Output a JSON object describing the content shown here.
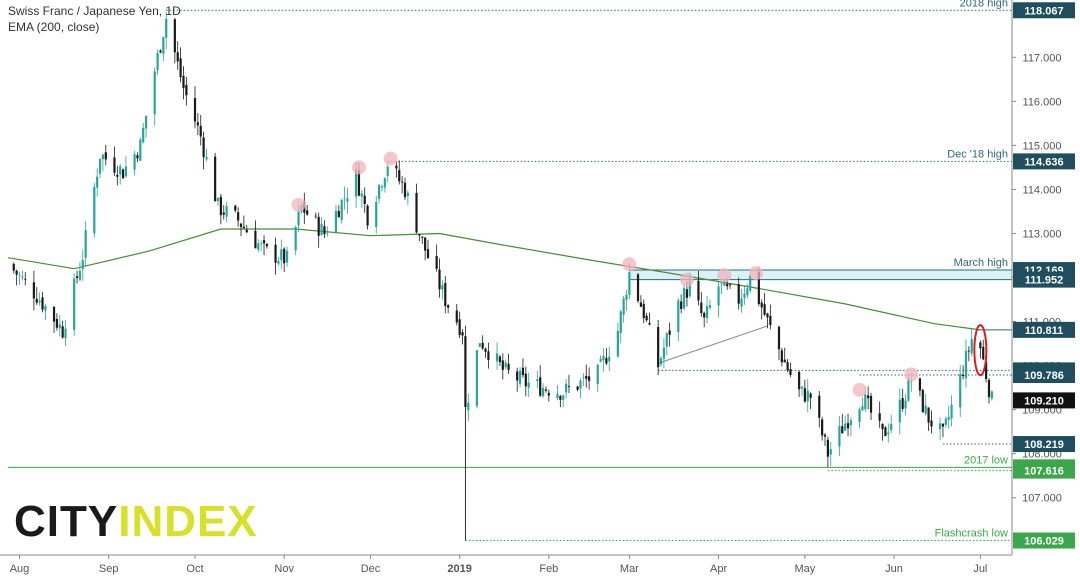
{
  "header": {
    "title": "Swiss Franc / Japanese Yen, 1D",
    "indicator": "EMA (200, close)"
  },
  "logo": {
    "part1": "CITY",
    "part2": "INDEX"
  },
  "colors": {
    "up": "#26a69a",
    "down": "#1a1a1a",
    "ema": "#4c8a3a",
    "guide": "#2e6b78",
    "green_guide": "#3aa84a",
    "marker": "#f2b4bc",
    "highlight_ring": "#d32020",
    "zone": "#c8ecf2",
    "label_bg": "#1f4e5f",
    "label_green": "#3aa84a",
    "label_current": "#111111"
  },
  "chart_data": {
    "type": "candlestick",
    "symbol": "CHF/JPY",
    "timeframe": "1D",
    "x_labels": [
      "Aug",
      "Sep",
      "Oct",
      "Nov",
      "Dec",
      "2019",
      "Feb",
      "Mar",
      "Apr",
      "May",
      "Jun",
      "Jul"
    ],
    "y_ticks": [
      107.0,
      108.0,
      109.0,
      110.0,
      111.0,
      112.0,
      113.0,
      114.0,
      115.0,
      116.0,
      117.0
    ],
    "ylim": [
      105.7,
      118.3
    ],
    "price_path": [
      [
        "2018-07-28",
        112.3
      ],
      [
        "2018-08-07",
        111.6
      ],
      [
        "2018-08-16",
        110.8
      ],
      [
        "2018-08-23",
        112.5
      ],
      [
        "2018-08-29",
        114.8
      ],
      [
        "2018-09-06",
        114.4
      ],
      [
        "2018-09-12",
        115.0
      ],
      [
        "2018-09-17",
        116.7
      ],
      [
        "2018-09-21",
        117.9
      ],
      [
        "2018-09-27",
        116.3
      ],
      [
        "2018-10-03",
        115.2
      ],
      [
        "2018-10-09",
        113.6
      ],
      [
        "2018-10-16",
        113.3
      ],
      [
        "2018-10-25",
        112.6
      ],
      [
        "2018-11-02",
        112.4
      ],
      [
        "2018-11-07",
        113.6
      ],
      [
        "2018-11-15",
        113.0
      ],
      [
        "2018-11-26",
        114.3
      ],
      [
        "2018-11-30",
        113.4
      ],
      [
        "2018-12-07",
        114.6
      ],
      [
        "2018-12-13",
        114.0
      ],
      [
        "2018-12-19",
        112.8
      ],
      [
        "2018-12-27",
        111.5
      ],
      [
        "2019-01-02",
        110.8
      ],
      [
        "2019-01-03",
        109.0
      ],
      [
        "2019-01-08",
        110.6
      ],
      [
        "2019-01-16",
        109.9
      ],
      [
        "2019-01-24",
        109.6
      ],
      [
        "2019-02-06",
        109.4
      ],
      [
        "2019-02-18",
        109.8
      ],
      [
        "2019-02-25",
        110.8
      ],
      [
        "2019-03-01",
        112.1
      ],
      [
        "2019-03-06",
        111.2
      ],
      [
        "2019-03-11",
        110.0
      ],
      [
        "2019-03-18",
        111.4
      ],
      [
        "2019-03-22",
        111.8
      ],
      [
        "2019-03-27",
        111.0
      ],
      [
        "2019-04-01",
        111.8
      ],
      [
        "2019-04-08",
        111.5
      ],
      [
        "2019-04-12",
        112.0
      ],
      [
        "2019-04-18",
        111.0
      ],
      [
        "2019-04-23",
        110.2
      ],
      [
        "2019-04-29",
        109.4
      ],
      [
        "2019-05-03",
        109.3
      ],
      [
        "2019-05-09",
        108.0
      ],
      [
        "2019-05-15",
        108.7
      ],
      [
        "2019-05-21",
        109.3
      ],
      [
        "2019-05-28",
        108.4
      ],
      [
        "2019-06-04",
        109.2
      ],
      [
        "2019-06-07",
        109.7
      ],
      [
        "2019-06-13",
        108.8
      ],
      [
        "2019-06-18",
        108.4
      ],
      [
        "2019-06-24",
        109.7
      ],
      [
        "2019-06-28",
        110.6
      ],
      [
        "2019-07-01",
        110.4
      ],
      [
        "2019-07-05",
        109.2
      ]
    ],
    "ema_path": [
      [
        "2018-07-28",
        112.45
      ],
      [
        "2018-08-20",
        112.2
      ],
      [
        "2018-09-15",
        112.6
      ],
      [
        "2018-10-10",
        113.1
      ],
      [
        "2018-11-05",
        113.1
      ],
      [
        "2018-12-01",
        112.95
      ],
      [
        "2018-12-25",
        113.0
      ],
      [
        "2019-01-15",
        112.75
      ],
      [
        "2019-02-15",
        112.4
      ],
      [
        "2019-03-15",
        112.1
      ],
      [
        "2019-04-15",
        111.75
      ],
      [
        "2019-05-15",
        111.4
      ],
      [
        "2019-06-15",
        110.95
      ],
      [
        "2019-07-01",
        110.81
      ]
    ],
    "levels": [
      {
        "name": "2018 high",
        "value": 118.067,
        "label": "118.067",
        "start": "2018-09-21",
        "style": "dotted",
        "tag": "guide"
      },
      {
        "name": "Dec '18 high",
        "value": 114.636,
        "label": "114.636",
        "start": "2018-12-07",
        "style": "dotted",
        "tag": "guide"
      },
      {
        "name": "March high",
        "value": 112.169,
        "label": "112.169",
        "start": "2019-03-01",
        "style": "solid",
        "tag": "guide"
      },
      {
        "name": "",
        "value": 111.952,
        "label": "111.952",
        "start": "2019-03-01",
        "style": "solid",
        "tag": "guide"
      },
      {
        "name": "",
        "value": 110.811,
        "label": "110.811",
        "start": "2019-06-30",
        "style": "solid",
        "tag": "guide"
      },
      {
        "name": "",
        "value": 109.891,
        "label": "109.891",
        "start": "2019-03-11",
        "style": "dotted",
        "tag": "guide"
      },
      {
        "name": "",
        "value": 109.786,
        "label": "109.786",
        "start": "2019-05-20",
        "style": "dotted",
        "tag": "guide"
      },
      {
        "name": "",
        "value": 108.219,
        "label": "108.219",
        "start": "2019-06-18",
        "style": "dotted",
        "tag": "guide"
      },
      {
        "name": "2017 low",
        "value": 107.69,
        "label": "107.690",
        "start": "2018-07-28",
        "style": "solid",
        "tag": "green"
      },
      {
        "name": "",
        "value": 107.616,
        "label": "107.616",
        "start": "2019-05-09",
        "style": "dotted",
        "tag": "green"
      },
      {
        "name": "Flashcrash low",
        "value": 106.029,
        "label": "106.029",
        "start": "2019-01-03",
        "style": "dotted",
        "tag": "green"
      }
    ],
    "current_price": {
      "value": 109.21,
      "label": "109.210"
    },
    "zone": {
      "from": 111.952,
      "to": 112.169,
      "start": "2019-03-01"
    },
    "trendline": [
      [
        "2019-03-11",
        110.05
      ],
      [
        "2019-04-18",
        110.9
      ]
    ],
    "swing_high_markers": [
      [
        "2018-11-06",
        113.65
      ],
      [
        "2018-11-27",
        114.5
      ],
      [
        "2018-12-08",
        114.7
      ],
      [
        "2019-03-01",
        112.3
      ],
      [
        "2019-03-21",
        111.95
      ],
      [
        "2019-04-03",
        112.05
      ],
      [
        "2019-04-14",
        112.1
      ],
      [
        "2019-05-20",
        109.45
      ],
      [
        "2019-06-07",
        109.8
      ]
    ],
    "highlight_ring": {
      "date": "2019-07-01",
      "value": 110.35
    }
  }
}
